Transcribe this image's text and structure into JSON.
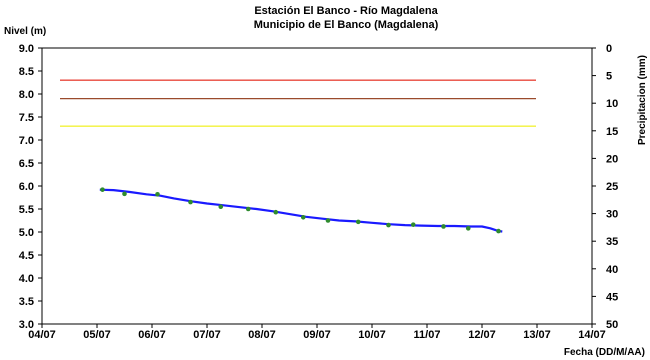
{
  "chart_data": {
    "type": "line",
    "title": "Estación El Banco - Río Magdalena",
    "subtitle": "Municipio de El Banco (Magdalena)",
    "ylabel": "Nivel (m)",
    "y2label": "Precipitacion (mm)",
    "xlabel": "Fecha (DD/M/AA)",
    "x_ticks": [
      "04/07",
      "05/07",
      "06/07",
      "07/07",
      "08/07",
      "09/07",
      "10/07",
      "11/07",
      "12/07",
      "13/07",
      "14/07"
    ],
    "ylim": [
      3.0,
      9.0
    ],
    "y_ticks": [
      "9.0",
      "8.5",
      "8.0",
      "7.5",
      "7.0",
      "6.5",
      "6.0",
      "5.5",
      "5.0",
      "4.5",
      "4.0",
      "3.5",
      "3.0"
    ],
    "y2lim": [
      0,
      50
    ],
    "y2_ticks": [
      "0",
      "5",
      "10",
      "15",
      "20",
      "25",
      "30",
      "35",
      "40",
      "45",
      "50"
    ],
    "reference_lines": [
      {
        "value": 8.3,
        "color": "#e8473c"
      },
      {
        "value": 7.9,
        "color": "#9a4b2c"
      },
      {
        "value": 7.3,
        "color": "#f2f23a"
      }
    ],
    "series": [
      {
        "color": "#1a1aff",
        "points": [
          [
            1.05,
            5.92
          ],
          [
            1.3,
            5.91
          ],
          [
            1.6,
            5.87
          ],
          [
            1.9,
            5.82
          ],
          [
            2.15,
            5.79
          ],
          [
            2.4,
            5.73
          ],
          [
            2.7,
            5.67
          ],
          [
            3.0,
            5.62
          ],
          [
            3.3,
            5.58
          ],
          [
            3.6,
            5.54
          ],
          [
            3.9,
            5.5
          ],
          [
            4.2,
            5.45
          ],
          [
            4.5,
            5.39
          ],
          [
            4.8,
            5.33
          ],
          [
            5.1,
            5.29
          ],
          [
            5.4,
            5.25
          ],
          [
            5.7,
            5.23
          ],
          [
            6.0,
            5.2
          ],
          [
            6.3,
            5.17
          ],
          [
            6.6,
            5.15
          ],
          [
            6.9,
            5.14
          ],
          [
            7.2,
            5.13
          ],
          [
            7.5,
            5.13
          ],
          [
            7.8,
            5.12
          ],
          [
            8.0,
            5.12
          ],
          [
            8.15,
            5.08
          ],
          [
            8.3,
            5.02
          ],
          [
            8.37,
            5.01
          ]
        ]
      },
      {
        "color": "#2e8b2e",
        "marker": "dot",
        "points": [
          [
            1.1,
            5.92
          ],
          [
            1.5,
            5.83
          ],
          [
            2.1,
            5.82
          ],
          [
            2.7,
            5.65
          ],
          [
            3.25,
            5.55
          ],
          [
            3.75,
            5.5
          ],
          [
            4.25,
            5.43
          ],
          [
            4.75,
            5.32
          ],
          [
            5.2,
            5.25
          ],
          [
            5.75,
            5.22
          ],
          [
            6.3,
            5.15
          ],
          [
            6.75,
            5.16
          ],
          [
            7.3,
            5.12
          ],
          [
            7.75,
            5.08
          ],
          [
            8.3,
            5.02
          ]
        ]
      }
    ]
  }
}
